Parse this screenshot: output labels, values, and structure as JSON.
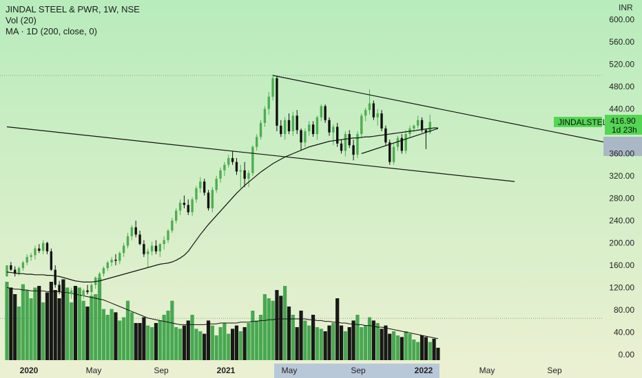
{
  "header": {
    "symbol_line": "JINDAL STEEL & PWR, 1W, NSE",
    "volume_line": "Vol (20)",
    "ma_line": "MA · 1D (200, close, 0)"
  },
  "price_tag": {
    "ticker": "JINDALSTEL",
    "last_price": "416.90",
    "countdown": "1d 23h"
  },
  "colors": {
    "up": "#4caf50",
    "down": "#111111",
    "ticker_tag": "#53d653",
    "bg_top": "#b8ecbc",
    "bg_bottom": "#ecf0d2"
  },
  "chart_data": {
    "type": "candlestick",
    "currency": "INR",
    "x_ticks": [
      "2020",
      "May",
      "Sep",
      "2021",
      "May",
      "Sep",
      "2022",
      "May",
      "Sep"
    ],
    "y_ticks": [
      "600.00",
      "560.00",
      "520.00",
      "480.00",
      "440.00",
      "400.00",
      "360.00",
      "320.00",
      "280.00",
      "240.00",
      "200.00",
      "160.00",
      "120.00",
      "80.00",
      "40.00",
      "0.00"
    ],
    "ylim": [
      0,
      620
    ],
    "horizontal_levels": [
      500,
      65
    ],
    "candles": [
      [
        140,
        160,
        140,
        160
      ],
      [
        160,
        166,
        150,
        152
      ],
      [
        152,
        158,
        140,
        145
      ],
      [
        145,
        158,
        142,
        155
      ],
      [
        155,
        168,
        150,
        165
      ],
      [
        165,
        180,
        160,
        175
      ],
      [
        175,
        182,
        168,
        178
      ],
      [
        178,
        195,
        170,
        190
      ],
      [
        190,
        198,
        182,
        186
      ],
      [
        186,
        205,
        180,
        200
      ],
      [
        200,
        202,
        180,
        185
      ],
      [
        185,
        190,
        150,
        152
      ],
      [
        152,
        160,
        120,
        125
      ],
      [
        125,
        132,
        108,
        112
      ],
      [
        112,
        118,
        100,
        103
      ],
      [
        103,
        112,
        92,
        108
      ],
      [
        108,
        120,
        100,
        115
      ],
      [
        115,
        122,
        98,
        100
      ],
      [
        100,
        110,
        95,
        105
      ],
      [
        105,
        118,
        100,
        115
      ],
      [
        115,
        125,
        108,
        112
      ],
      [
        112,
        128,
        105,
        125
      ],
      [
        125,
        140,
        118,
        138
      ],
      [
        138,
        148,
        130,
        145
      ],
      [
        145,
        158,
        140,
        155
      ],
      [
        155,
        168,
        150,
        165
      ],
      [
        165,
        175,
        158,
        170
      ],
      [
        170,
        180,
        160,
        168
      ],
      [
        168,
        185,
        162,
        182
      ],
      [
        182,
        200,
        175,
        195
      ],
      [
        195,
        218,
        190,
        212
      ],
      [
        212,
        232,
        205,
        228
      ],
      [
        228,
        240,
        210,
        215
      ],
      [
        215,
        222,
        196,
        198
      ],
      [
        198,
        205,
        175,
        180
      ],
      [
        180,
        190,
        155,
        185
      ],
      [
        185,
        202,
        178,
        195
      ],
      [
        195,
        205,
        180,
        185
      ],
      [
        185,
        200,
        175,
        198
      ],
      [
        198,
        212,
        188,
        205
      ],
      [
        205,
        225,
        200,
        222
      ],
      [
        222,
        245,
        218,
        240
      ],
      [
        240,
        262,
        235,
        258
      ],
      [
        258,
        278,
        250,
        272
      ],
      [
        272,
        285,
        262,
        268
      ],
      [
        268,
        278,
        250,
        255
      ],
      [
        255,
        282,
        248,
        278
      ],
      [
        278,
        302,
        272,
        298
      ],
      [
        298,
        318,
        290,
        310
      ],
      [
        310,
        315,
        285,
        290
      ],
      [
        290,
        295,
        258,
        262
      ],
      [
        262,
        300,
        255,
        295
      ],
      [
        295,
        320,
        290,
        315
      ],
      [
        315,
        335,
        308,
        330
      ],
      [
        330,
        345,
        320,
        340
      ],
      [
        340,
        358,
        335,
        352
      ],
      [
        352,
        365,
        340,
        345
      ],
      [
        345,
        352,
        322,
        328
      ],
      [
        328,
        340,
        298,
        330
      ],
      [
        330,
        345,
        300,
        315
      ],
      [
        315,
        330,
        300,
        325
      ],
      [
        325,
        375,
        320,
        372
      ],
      [
        372,
        395,
        365,
        390
      ],
      [
        390,
        420,
        385,
        415
      ],
      [
        415,
        445,
        408,
        440
      ],
      [
        440,
        470,
        430,
        462
      ],
      [
        462,
        502,
        455,
        495
      ],
      [
        495,
        498,
        400,
        410
      ],
      [
        410,
        420,
        390,
        395
      ],
      [
        395,
        425,
        385,
        420
      ],
      [
        420,
        432,
        395,
        400
      ],
      [
        400,
        435,
        392,
        428
      ],
      [
        428,
        438,
        395,
        402
      ],
      [
        402,
        405,
        365,
        380
      ],
      [
        380,
        405,
        372,
        400
      ],
      [
        400,
        418,
        392,
        412
      ],
      [
        412,
        418,
        390,
        395
      ],
      [
        395,
        428,
        385,
        425
      ],
      [
        425,
        448,
        418,
        445
      ],
      [
        445,
        448,
        415,
        420
      ],
      [
        420,
        425,
        392,
        398
      ],
      [
        398,
        412,
        375,
        408
      ],
      [
        408,
        415,
        372,
        378
      ],
      [
        378,
        385,
        360,
        365
      ],
      [
        365,
        400,
        355,
        395
      ],
      [
        395,
        402,
        370,
        375
      ],
      [
        375,
        385,
        348,
        358
      ],
      [
        358,
        400,
        352,
        395
      ],
      [
        395,
        432,
        388,
        428
      ],
      [
        428,
        442,
        418,
        438
      ],
      [
        438,
        475,
        430,
        450
      ],
      [
        450,
        455,
        420,
        425
      ],
      [
        425,
        440,
        410,
        432
      ],
      [
        432,
        438,
        400,
        405
      ],
      [
        405,
        410,
        375,
        380
      ],
      [
        380,
        385,
        340,
        345
      ],
      [
        345,
        378,
        340,
        372
      ],
      [
        372,
        392,
        365,
        388
      ],
      [
        388,
        395,
        360,
        365
      ],
      [
        365,
        402,
        360,
        395
      ],
      [
        395,
        410,
        388,
        405
      ],
      [
        405,
        412,
        398,
        410
      ],
      [
        410,
        428,
        405,
        420
      ],
      [
        420,
        425,
        398,
        402
      ],
      [
        402,
        405,
        368,
        398
      ],
      [
        398,
        430,
        395,
        416.9
      ]
    ],
    "volume": [
      95,
      88,
      80,
      65,
      92,
      85,
      75,
      88,
      90,
      70,
      82,
      95,
      85,
      75,
      98,
      88,
      70,
      90,
      88,
      72,
      65,
      78,
      80,
      100,
      62,
      55,
      62,
      58,
      48,
      52,
      72,
      58,
      45,
      45,
      52,
      42,
      40,
      45,
      48,
      55,
      60,
      72,
      40,
      38,
      42,
      48,
      55,
      38,
      35,
      32,
      48,
      42,
      30,
      40,
      45,
      32,
      38,
      42,
      35,
      40,
      45,
      60,
      48,
      55,
      80,
      75,
      72,
      85,
      78,
      90,
      65,
      55,
      40,
      60,
      48,
      42,
      55,
      40,
      38,
      35,
      42,
      45,
      75,
      42,
      35,
      40,
      48,
      55,
      40,
      42,
      52,
      48,
      45,
      38,
      42,
      32,
      35,
      30,
      28,
      35,
      32,
      25,
      22,
      30,
      28,
      22,
      26,
      15
    ],
    "ma_values": [
      148,
      147,
      146,
      145,
      145,
      144,
      144,
      143,
      143,
      143,
      142,
      142,
      141,
      140,
      138,
      136,
      134,
      132,
      131,
      130,
      130,
      130,
      131,
      132,
      134,
      136,
      138,
      140,
      142,
      144,
      146,
      148,
      150,
      152,
      154,
      156,
      158,
      160,
      162,
      163,
      164,
      166,
      169,
      173,
      178,
      185,
      195,
      205,
      215,
      224,
      233,
      241,
      249,
      257,
      265,
      273,
      281,
      289,
      296,
      303,
      309,
      315,
      321,
      327,
      332,
      337,
      342,
      346,
      350,
      354,
      357,
      360,
      363,
      366,
      369,
      372,
      374,
      376,
      378,
      380,
      382,
      383,
      384,
      385,
      386,
      387,
      388,
      388,
      389,
      390,
      390,
      391,
      392,
      393,
      394,
      395,
      396,
      397,
      398,
      399,
      400,
      401,
      402,
      403,
      404,
      405,
      406,
      406
    ],
    "volume_ma": [
      88,
      87,
      86,
      86,
      85,
      85,
      84,
      84,
      84,
      84,
      83,
      83,
      83,
      83,
      82,
      82,
      81,
      80,
      79,
      78,
      77,
      76,
      75,
      74,
      73,
      71,
      69,
      67,
      65,
      63,
      61,
      59,
      57,
      55,
      53,
      51,
      50,
      49,
      48,
      47,
      46,
      45,
      44,
      43,
      43,
      43,
      43,
      43,
      43,
      43,
      44,
      44,
      44,
      45,
      45,
      45,
      45,
      45,
      46,
      46,
      46,
      47,
      47,
      48,
      48,
      49,
      49,
      50,
      50,
      50,
      50,
      50,
      50,
      50,
      50,
      49,
      49,
      48,
      48,
      47,
      47,
      46,
      46,
      45,
      45,
      44,
      44,
      43,
      43,
      42,
      42,
      41,
      40,
      40,
      39,
      38,
      37,
      36,
      35,
      34,
      33,
      32,
      31,
      30,
      29,
      28,
      27,
      26
    ],
    "trendlines": [
      {
        "from": [
          66,
          500
        ],
        "to": [
          150,
          378
        ]
      },
      {
        "from": [
          0,
          408
        ],
        "to": [
          126,
          310
        ]
      },
      {
        "from": [
          88,
          360
        ],
        "to": [
          107,
          405
        ]
      }
    ]
  }
}
